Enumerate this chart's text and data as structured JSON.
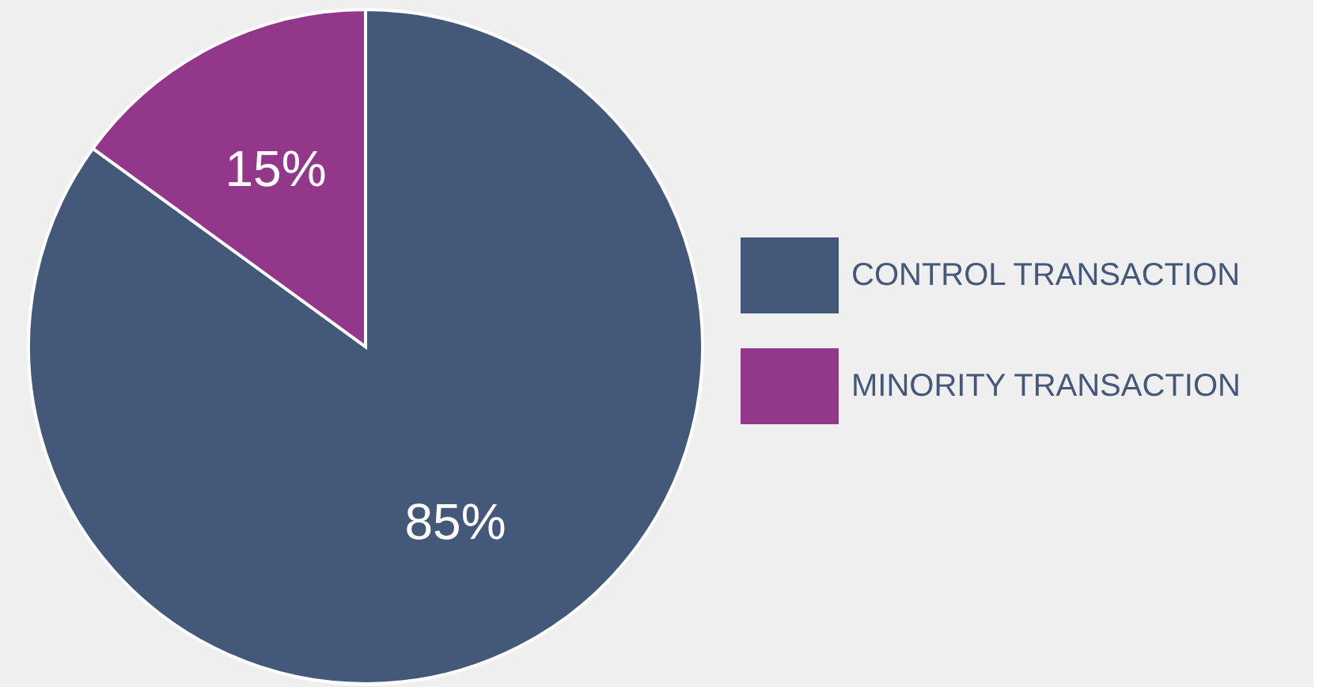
{
  "chart_data": {
    "type": "pie",
    "categories": [
      "CONTROL TRANSACTION",
      "MINORITY TRANSACTION"
    ],
    "values": [
      85,
      15
    ],
    "colors": [
      "#44587a",
      "#93378a"
    ],
    "value_labels": [
      "85%",
      "15%"
    ],
    "legend": "right"
  }
}
